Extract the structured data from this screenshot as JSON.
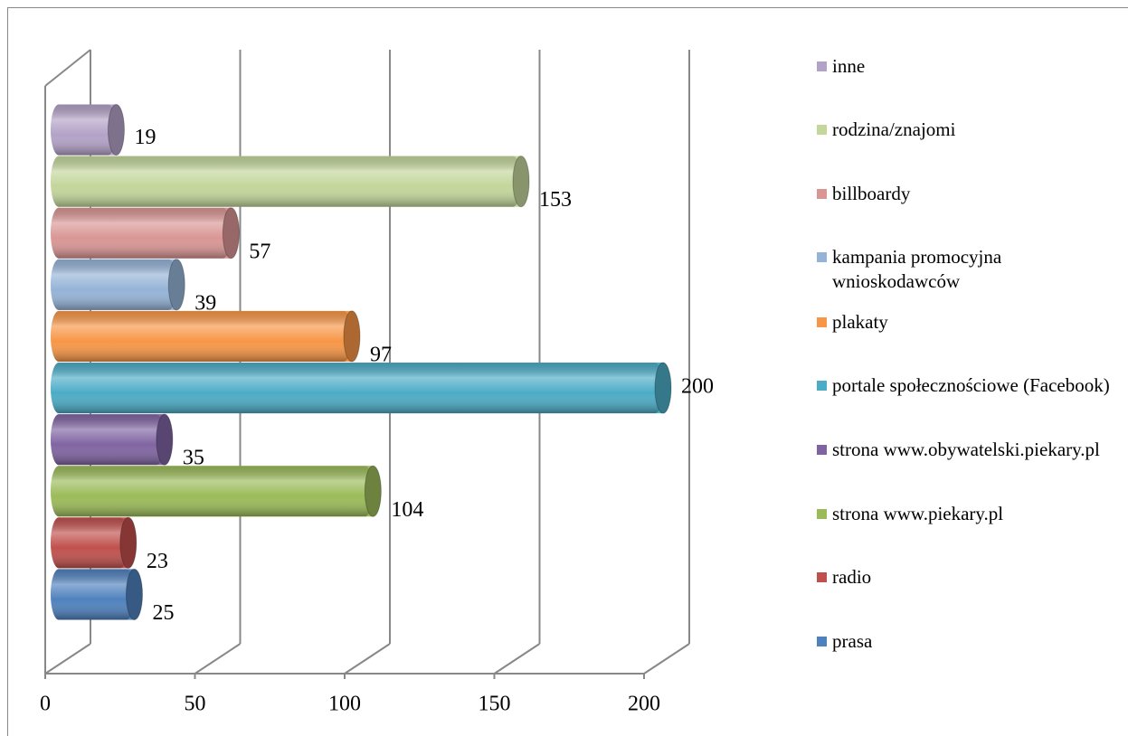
{
  "chart_data": {
    "type": "bar3d",
    "series": [
      {
        "name": "prasa",
        "color": "#4f81bd",
        "values": [
          25
        ]
      },
      {
        "name": "radio",
        "color": "#c0504d",
        "values": [
          23
        ]
      },
      {
        "name": "strona www.piekary.pl",
        "color": "#9bbb59",
        "values": [
          104
        ]
      },
      {
        "name": "strona www.obywatelski.piekary.pl",
        "color": "#8064a2",
        "values": [
          35
        ]
      },
      {
        "name": "portale społecznościowe (Facebook)",
        "color": "#4bacc6",
        "values": [
          200
        ]
      },
      {
        "name": "plakaty",
        "color": "#f79646",
        "values": [
          97
        ]
      },
      {
        "name": "kampania promocyjna wnioskodawców",
        "color": "#95b3d7",
        "values": [
          39
        ]
      },
      {
        "name": "billboardy",
        "color": "#d99694",
        "values": [
          57
        ]
      },
      {
        "name": "rodzina/znajomi",
        "color": "#c3d69b",
        "values": [
          153
        ]
      },
      {
        "name": "inne",
        "color": "#b3a2c7",
        "values": [
          19
        ]
      }
    ],
    "xlim": [
      0,
      200
    ],
    "xticks": [
      0,
      50,
      100,
      150,
      200
    ],
    "grid": true,
    "legend": "right"
  }
}
